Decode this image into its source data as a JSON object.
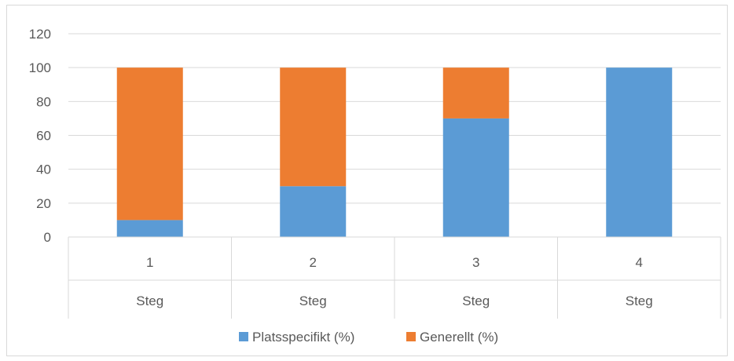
{
  "chart_data": {
    "type": "bar",
    "stacked": true,
    "categories": [
      "1",
      "2",
      "3",
      "4"
    ],
    "category_group_label": "Steg",
    "series": [
      {
        "name": "Platsspecifikt (%)",
        "color": "#5b9bd5",
        "values": [
          10,
          30,
          70,
          100
        ]
      },
      {
        "name": "Generellt (%)",
        "color": "#ed7d31",
        "values": [
          90,
          70,
          30,
          0
        ]
      }
    ],
    "ylim": [
      0,
      120
    ],
    "yticks": [
      "0",
      "20",
      "40",
      "60",
      "80",
      "100",
      "120"
    ],
    "grid": true,
    "legend_position": "bottom"
  }
}
